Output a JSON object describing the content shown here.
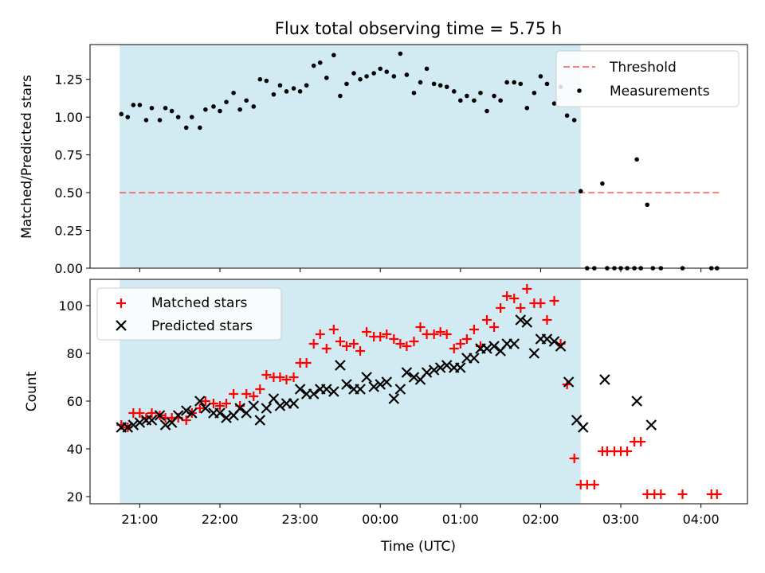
{
  "chart_data": [
    {
      "type": "scatter",
      "title": "Flux total observing time = 5.75 h",
      "xlabel": "",
      "ylabel": "Matched/Predicted stars",
      "x_unit": "hours since 20:00 UTC (displayed as clock time)",
      "xlim": [
        20.38,
        28.58
      ],
      "ylim": [
        0,
        1.48
      ],
      "yticks": [
        0.0,
        0.25,
        0.5,
        0.75,
        1.0,
        1.25
      ],
      "ytick_labels": [
        "0.00",
        "0.25",
        "0.50",
        "0.75",
        "1.00",
        "1.25"
      ],
      "xticks": [
        21,
        22,
        23,
        24,
        25,
        26,
        27,
        28
      ],
      "xtick_labels": [],
      "shaded_region": {
        "x": [
          20.75,
          26.5
        ],
        "color": "#add8e6"
      },
      "legend": {
        "position": "top-right",
        "entries": [
          "Threshold",
          "Measurements"
        ]
      },
      "series": [
        {
          "name": "Threshold",
          "kind": "dashed-line",
          "color": "#ff0000",
          "x": [
            20.75,
            28.25
          ],
          "y": [
            0.5,
            0.5
          ]
        },
        {
          "name": "Measurements",
          "kind": "dot",
          "color": "#000000",
          "x": [
            20.77,
            20.85,
            20.92,
            21.0,
            21.08,
            21.15,
            21.25,
            21.32,
            21.4,
            21.48,
            21.58,
            21.65,
            21.75,
            21.82,
            21.92,
            22.0,
            22.08,
            22.17,
            22.25,
            22.33,
            22.42,
            22.5,
            22.58,
            22.67,
            22.75,
            22.83,
            22.92,
            23.0,
            23.08,
            23.17,
            23.25,
            23.33,
            23.42,
            23.5,
            23.58,
            23.67,
            23.75,
            23.83,
            23.92,
            24.0,
            24.08,
            24.17,
            24.25,
            24.33,
            24.42,
            24.5,
            24.58,
            24.67,
            24.75,
            24.83,
            24.92,
            25.0,
            25.08,
            25.17,
            25.25,
            25.33,
            25.42,
            25.5,
            25.58,
            25.67,
            25.75,
            25.83,
            25.92,
            26.0,
            26.08,
            26.17,
            26.25,
            26.33,
            26.42,
            26.5,
            26.58,
            26.67,
            26.77,
            26.83,
            26.92,
            27.0,
            27.08,
            27.17,
            27.2,
            27.25,
            27.33,
            27.4,
            27.5,
            27.77,
            28.13,
            28.2
          ],
          "y": [
            1.02,
            1.0,
            1.08,
            1.08,
            0.98,
            1.06,
            0.98,
            1.06,
            1.04,
            1.0,
            0.93,
            1.0,
            0.93,
            1.05,
            1.07,
            1.04,
            1.1,
            1.16,
            1.05,
            1.11,
            1.07,
            1.25,
            1.24,
            1.15,
            1.21,
            1.17,
            1.19,
            1.17,
            1.21,
            1.34,
            1.36,
            1.26,
            1.41,
            1.14,
            1.22,
            1.29,
            1.25,
            1.27,
            1.29,
            1.32,
            1.3,
            1.27,
            1.42,
            1.28,
            1.16,
            1.23,
            1.32,
            1.22,
            1.21,
            1.2,
            1.17,
            1.11,
            1.14,
            1.11,
            1.16,
            1.04,
            1.14,
            1.11,
            1.23,
            1.23,
            1.22,
            1.06,
            1.16,
            1.27,
            1.22,
            1.09,
            1.2,
            1.01,
            0.98,
            0.51,
            0.0,
            0.0,
            0.56,
            0.0,
            0.0,
            0.0,
            0.0,
            0.0,
            0.72,
            0.0,
            0.42,
            0.0,
            0.0,
            0.0,
            0.0,
            0.0
          ]
        }
      ]
    },
    {
      "type": "scatter",
      "title": "",
      "xlabel": "Time (UTC)",
      "ylabel": "Count",
      "x_unit": "hours since 20:00 UTC (displayed as clock time)",
      "xlim": [
        20.38,
        28.58
      ],
      "ylim": [
        17,
        111
      ],
      "yticks": [
        20,
        40,
        60,
        80,
        100
      ],
      "ytick_labels": [
        "20",
        "40",
        "60",
        "80",
        "100"
      ],
      "xticks": [
        21,
        22,
        23,
        24,
        25,
        26,
        27,
        28
      ],
      "xtick_labels": [
        "21:00",
        "22:00",
        "23:00",
        "00:00",
        "01:00",
        "02:00",
        "03:00",
        "04:00"
      ],
      "shaded_region": {
        "x": [
          20.75,
          26.5
        ],
        "color": "#add8e6"
      },
      "legend": {
        "position": "top-left",
        "entries": [
          "Matched stars",
          "Predicted stars"
        ]
      },
      "series": [
        {
          "name": "Matched stars",
          "marker": "plus",
          "color": "#ff0000",
          "x": [
            20.77,
            20.85,
            20.92,
            21.0,
            21.08,
            21.15,
            21.25,
            21.32,
            21.4,
            21.48,
            21.58,
            21.65,
            21.75,
            21.82,
            21.92,
            22.0,
            22.08,
            22.17,
            22.25,
            22.33,
            22.42,
            22.5,
            22.58,
            22.67,
            22.75,
            22.83,
            22.92,
            23.0,
            23.08,
            23.17,
            23.25,
            23.33,
            23.42,
            23.5,
            23.58,
            23.67,
            23.75,
            23.83,
            23.92,
            24.0,
            24.08,
            24.17,
            24.25,
            24.33,
            24.42,
            24.5,
            24.58,
            24.67,
            24.75,
            24.83,
            24.92,
            25.0,
            25.08,
            25.17,
            25.25,
            25.33,
            25.42,
            25.5,
            25.58,
            25.67,
            25.75,
            25.83,
            25.92,
            26.0,
            26.08,
            26.17,
            26.25,
            26.33,
            26.42,
            26.5,
            26.58,
            26.67,
            26.77,
            26.83,
            26.92,
            27.0,
            27.08,
            27.17,
            27.25,
            27.33,
            27.42,
            27.5,
            27.77,
            28.13,
            28.2
          ],
          "y": [
            50,
            49,
            55,
            55,
            53,
            55,
            54,
            53,
            53,
            53,
            52,
            55,
            57,
            60,
            59,
            58,
            59,
            63,
            58,
            63,
            62,
            65,
            71,
            70,
            70,
            69,
            70,
            76,
            76,
            84,
            88,
            82,
            90,
            85,
            83,
            84,
            81,
            89,
            87,
            87,
            88,
            86,
            84,
            83,
            85,
            91,
            88,
            88,
            89,
            88,
            82,
            84,
            86,
            90,
            83,
            94,
            91,
            99,
            104,
            103,
            99,
            107,
            101,
            101,
            94,
            102,
            84,
            67,
            36,
            25,
            25,
            25,
            39,
            39,
            39,
            39,
            39,
            43,
            43,
            21,
            21,
            21,
            21,
            21,
            21
          ]
        },
        {
          "name": "Predicted stars",
          "marker": "cross",
          "color": "#000000",
          "x": [
            20.77,
            20.85,
            20.92,
            21.0,
            21.08,
            21.15,
            21.25,
            21.32,
            21.4,
            21.48,
            21.58,
            21.65,
            21.75,
            21.82,
            21.92,
            22.0,
            22.08,
            22.17,
            22.25,
            22.33,
            22.42,
            22.5,
            22.58,
            22.67,
            22.75,
            22.83,
            22.92,
            23.0,
            23.08,
            23.17,
            23.25,
            23.33,
            23.42,
            23.5,
            23.58,
            23.67,
            23.75,
            23.83,
            23.92,
            24.0,
            24.08,
            24.17,
            24.25,
            24.33,
            24.42,
            24.5,
            24.58,
            24.67,
            24.75,
            24.83,
            24.92,
            25.0,
            25.08,
            25.17,
            25.25,
            25.33,
            25.42,
            25.5,
            25.58,
            25.67,
            25.75,
            25.83,
            25.92,
            26.0,
            26.08,
            26.17,
            26.25,
            26.35,
            26.45,
            26.53,
            26.8,
            27.2,
            27.38
          ],
          "y": [
            49,
            49,
            50,
            51,
            52,
            52,
            54,
            50,
            51,
            54,
            56,
            55,
            60,
            57,
            55,
            55,
            53,
            54,
            57,
            55,
            58,
            52,
            57,
            61,
            58,
            59,
            59,
            65,
            63,
            63,
            65,
            65,
            64,
            75,
            67,
            65,
            65,
            70,
            66,
            67,
            68,
            61,
            65,
            72,
            70,
            69,
            72,
            73,
            74,
            75,
            74,
            74,
            78,
            78,
            82,
            82,
            83,
            81,
            84,
            84,
            94,
            93,
            80,
            86,
            86,
            85,
            83,
            68,
            52,
            49,
            69,
            60,
            50
          ]
        }
      ]
    }
  ]
}
